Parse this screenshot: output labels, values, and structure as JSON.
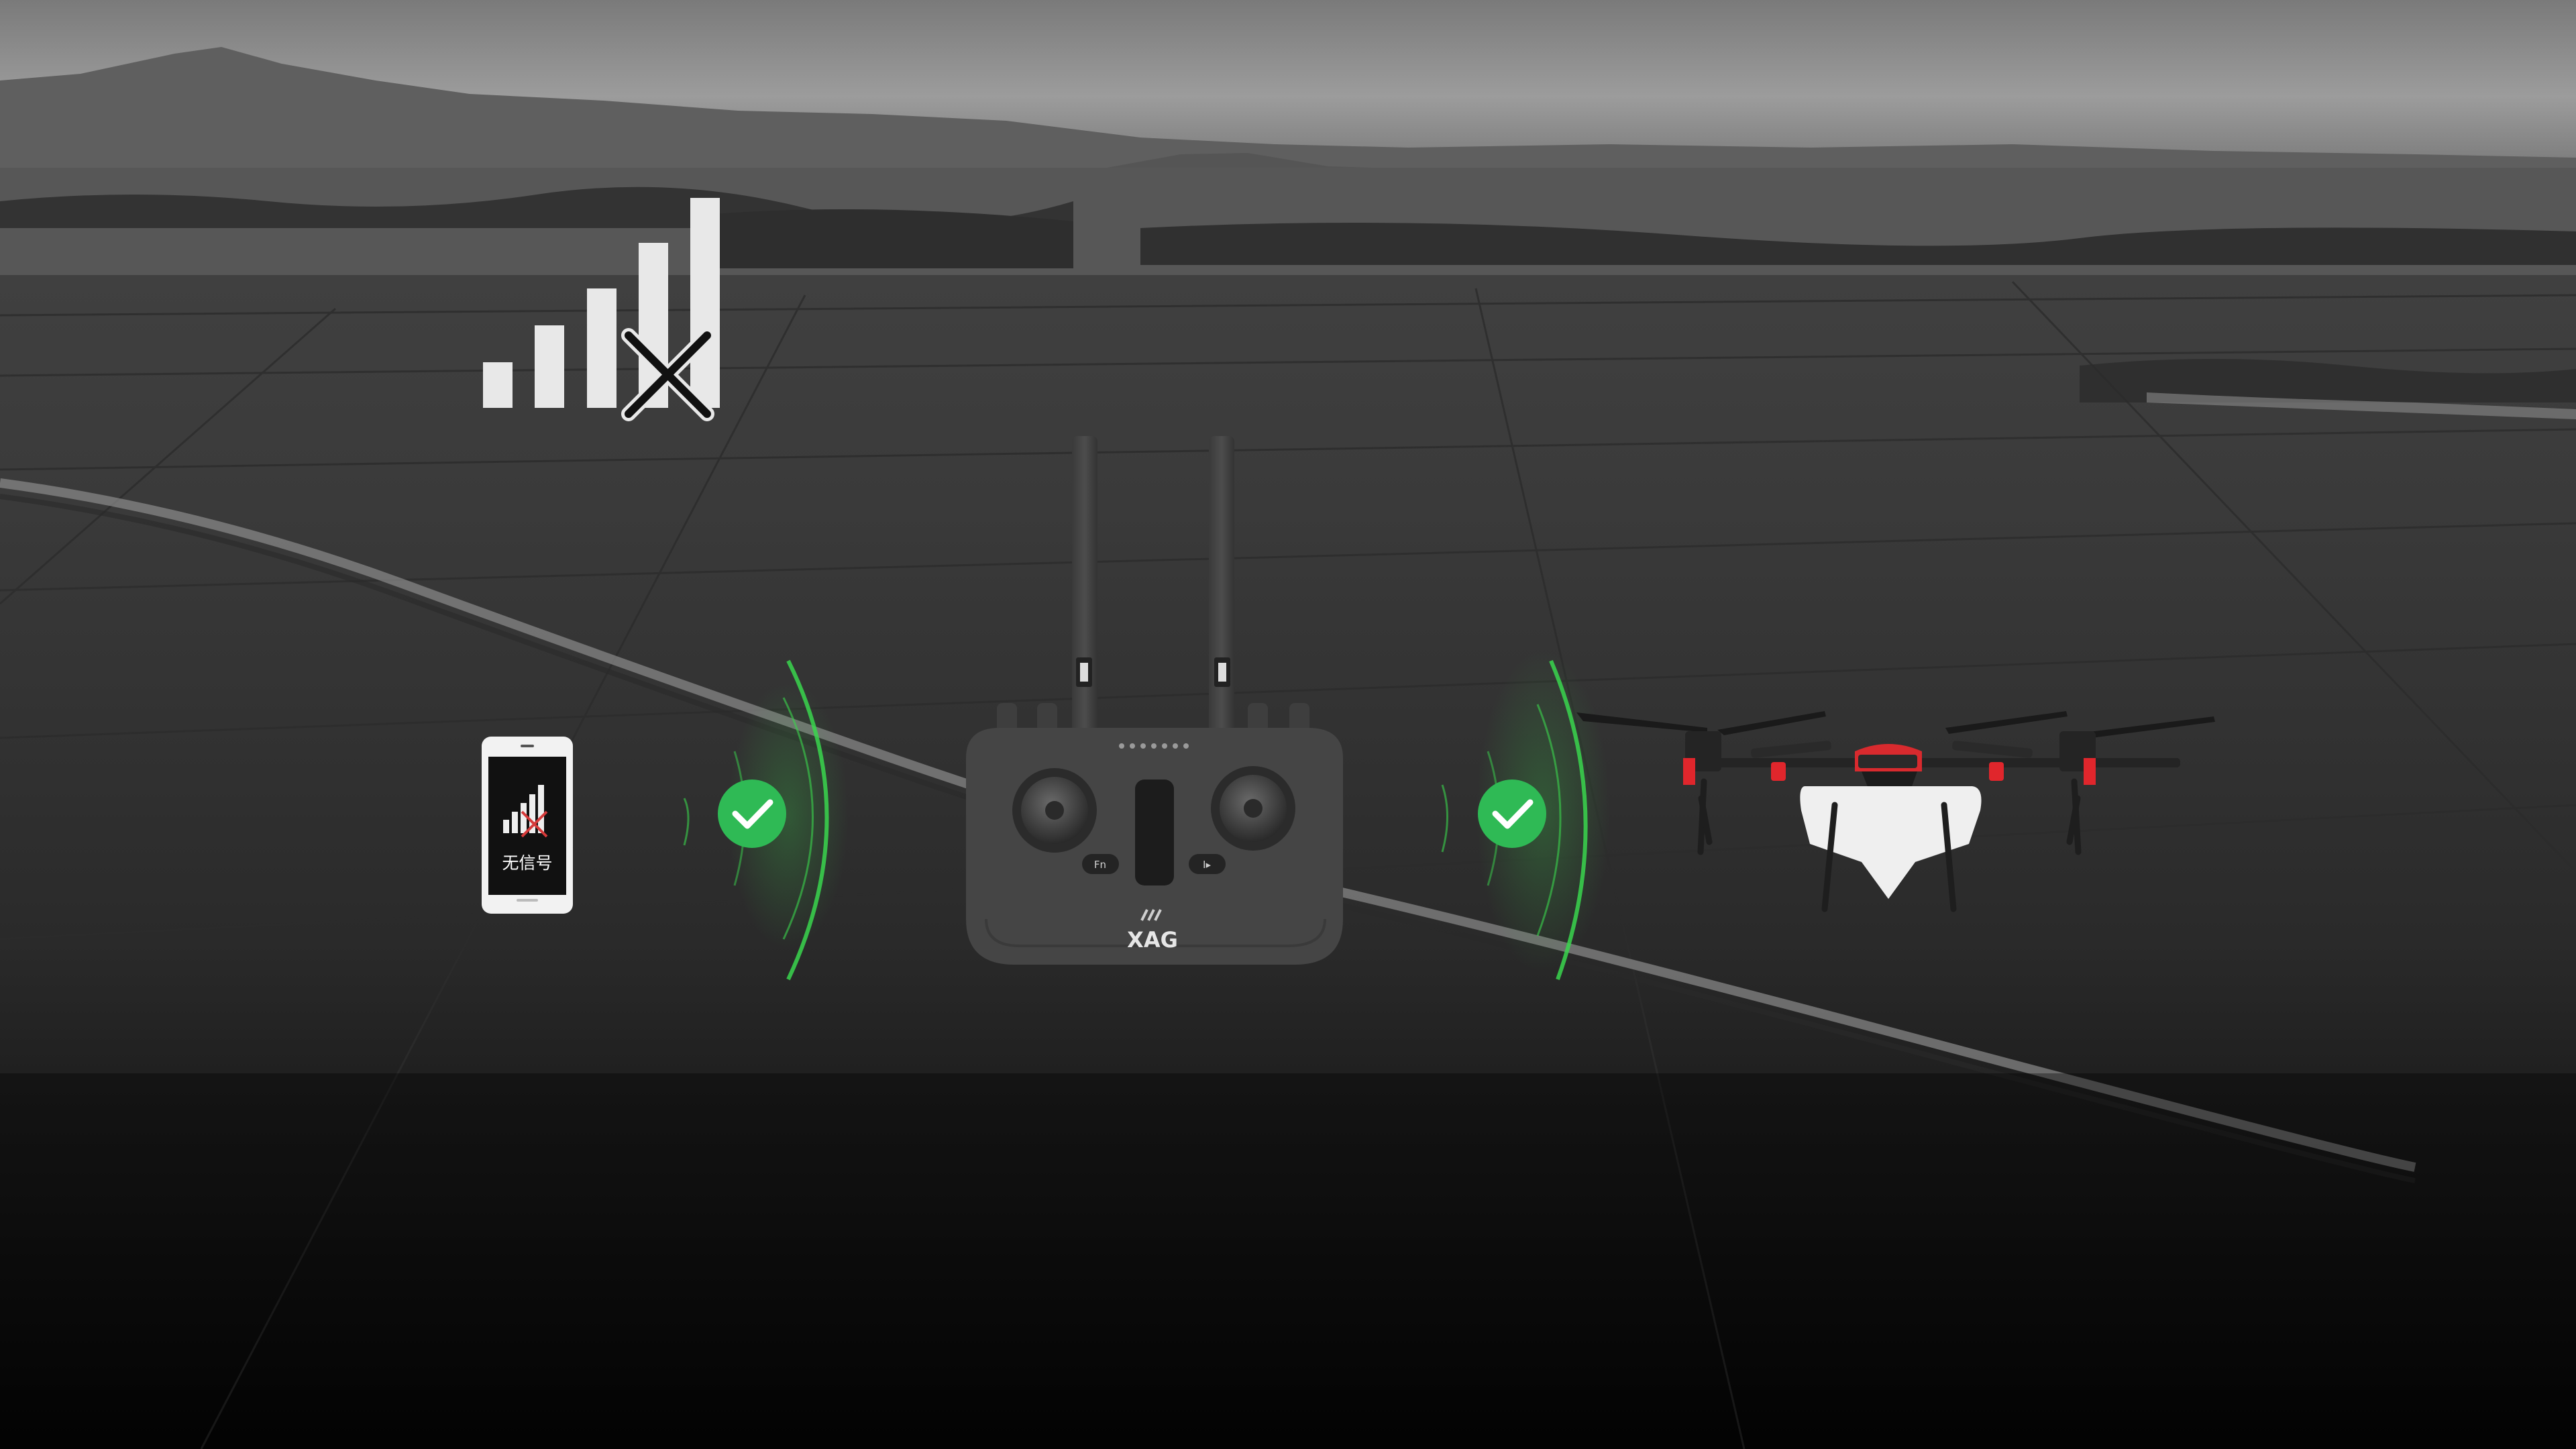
{
  "phone": {
    "status_label": "无信号"
  },
  "controller": {
    "brand": "XAG",
    "fn_label": "Fn",
    "play_label": "I▸"
  },
  "icons": {
    "signal": "signal-bars-crossed-icon",
    "phone": "smartphone-no-signal-icon",
    "check": "green-check-icon",
    "controller": "remote-controller-icon",
    "drone": "agricultural-drone-icon"
  },
  "colors": {
    "check_green": "#2fba55",
    "wave_green": "#3ad64d",
    "drone_red": "#e0262c",
    "controller_body": "#454545",
    "sky": "#8a8a8a"
  }
}
